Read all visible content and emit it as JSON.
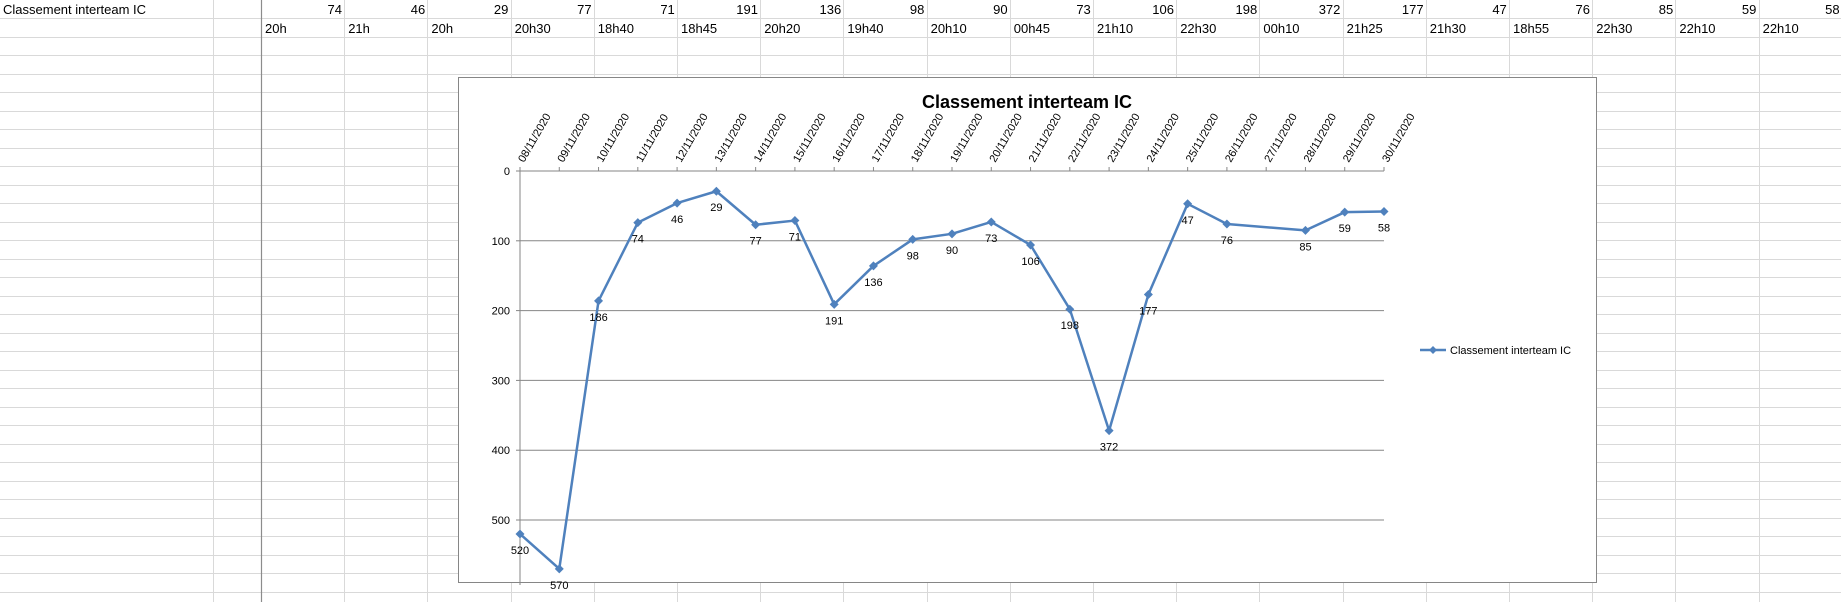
{
  "sheet": {
    "a1_label": "Classement interteam IC",
    "row1_values": [
      "74",
      "46",
      "29",
      "77",
      "71",
      "191",
      "136",
      "98",
      "90",
      "73",
      "106",
      "198",
      "372",
      "177",
      "47",
      "76",
      "85",
      "59",
      "58"
    ],
    "row2_times": [
      "20h",
      "21h",
      "20h",
      "20h30",
      "18h40",
      "18h45",
      "20h20",
      "19h40",
      "20h10",
      "00h45",
      "21h10",
      "22h30",
      "00h10",
      "21h25",
      "21h30",
      "18h55",
      "22h30",
      "22h10",
      "22h10"
    ]
  },
  "chart_data": {
    "type": "line",
    "title": "Classement interteam IC",
    "x": [
      "08/11/2020",
      "09/11/2020",
      "10/11/2020",
      "11/11/2020",
      "12/11/2020",
      "13/11/2020",
      "14/11/2020",
      "15/11/2020",
      "16/11/2020",
      "17/11/2020",
      "18/11/2020",
      "19/11/2020",
      "20/11/2020",
      "21/11/2020",
      "22/11/2020",
      "23/11/2020",
      "24/11/2020",
      "25/11/2020",
      "26/11/2020",
      "27/11/2020",
      "28/11/2020",
      "29/11/2020",
      "30/11/2020"
    ],
    "series": [
      {
        "name": "Classement interteam IC",
        "points": [
          {
            "x": "08/11/2020",
            "y": 520
          },
          {
            "x": "09/11/2020",
            "y": 570
          },
          {
            "x": "10/11/2020",
            "y": 186
          },
          {
            "x": "11/11/2020",
            "y": 74
          },
          {
            "x": "12/11/2020",
            "y": 46
          },
          {
            "x": "13/11/2020",
            "y": 29
          },
          {
            "x": "14/11/2020",
            "y": 77
          },
          {
            "x": "15/11/2020",
            "y": 71
          },
          {
            "x": "16/11/2020",
            "y": 191
          },
          {
            "x": "17/11/2020",
            "y": 136
          },
          {
            "x": "18/11/2020",
            "y": 98
          },
          {
            "x": "19/11/2020",
            "y": 90
          },
          {
            "x": "20/11/2020",
            "y": 73
          },
          {
            "x": "21/11/2020",
            "y": 106
          },
          {
            "x": "22/11/2020",
            "y": 198
          },
          {
            "x": "23/11/2020",
            "y": 372
          },
          {
            "x": "24/11/2020",
            "y": 177
          },
          {
            "x": "25/11/2020",
            "y": 47
          },
          {
            "x": "26/11/2020",
            "y": 76
          },
          {
            "x": "28/11/2020",
            "y": 85
          },
          {
            "x": "29/11/2020",
            "y": 59
          },
          {
            "x": "30/11/2020",
            "y": 58
          }
        ]
      }
    ],
    "yticks": [
      0,
      100,
      200,
      300,
      400,
      500
    ],
    "ylim": [
      0,
      570
    ],
    "y_inverted": true,
    "grid": true,
    "legend": "right",
    "line_color": "#4f81bd"
  }
}
